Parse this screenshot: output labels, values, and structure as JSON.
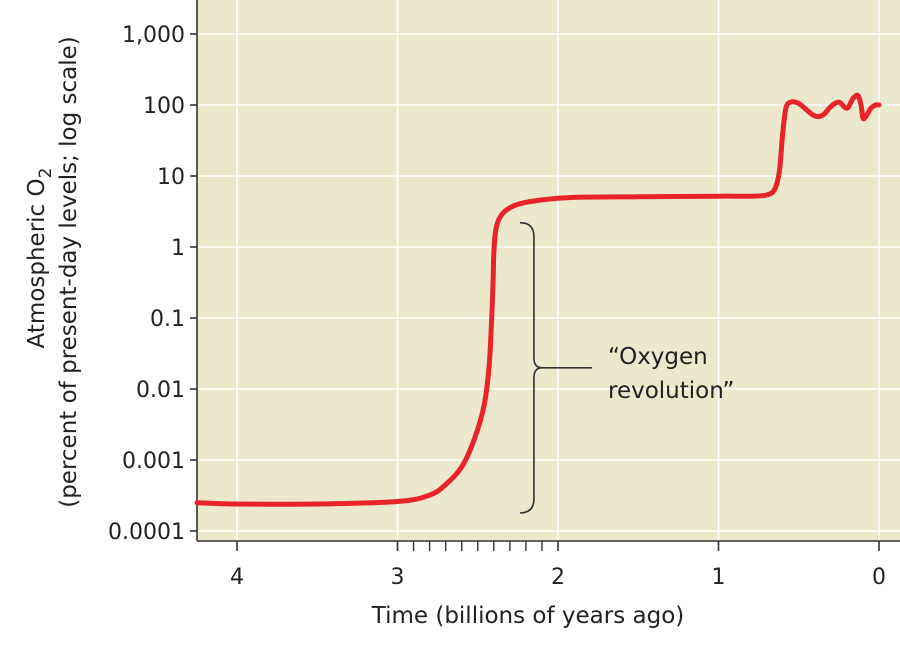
{
  "chart_data": {
    "type": "line",
    "title": "",
    "xlabel": "Time (billions of years ago)",
    "ylabel_line1": "Atmospheric O",
    "ylabel_subscript": "2",
    "ylabel_line2": "(percent of present-day levels; log scale)",
    "yscale": "log",
    "ylim": [
      0.0001,
      2000
    ],
    "xlim": [
      4.25,
      -0.05
    ],
    "x_ticks": [
      4,
      3,
      2,
      1,
      0
    ],
    "x_tick_labels": [
      "4",
      "3",
      "2",
      "1",
      "0"
    ],
    "x_minor_ticks": [
      2.9,
      2.8,
      2.7,
      2.6,
      2.5,
      2.4,
      2.3,
      2.2,
      2.1
    ],
    "y_ticks": [
      0.0001,
      0.001,
      0.01,
      0.1,
      1,
      10,
      100,
      1000
    ],
    "y_tick_labels": [
      "0.0001",
      "0.001",
      "0.01",
      "0.1",
      "1",
      "10",
      "100",
      "1,000"
    ],
    "grid": true,
    "colors": {
      "background": "#ece8cc",
      "grid": "#ffffff",
      "line": "#e8232a",
      "axis": "#333333"
    },
    "series": [
      {
        "name": "Atmospheric O2",
        "x": [
          4.25,
          4.0,
          3.5,
          3.0,
          2.8,
          2.7,
          2.6,
          2.52,
          2.46,
          2.43,
          2.415,
          2.405,
          2.4,
          2.39,
          2.37,
          2.33,
          2.25,
          2.1,
          1.9,
          1.5,
          1.0,
          0.8,
          0.7,
          0.65,
          0.62,
          0.6,
          0.58,
          0.55,
          0.5,
          0.45,
          0.4,
          0.35,
          0.3,
          0.25,
          0.2,
          0.16,
          0.13,
          0.11,
          0.1,
          0.08,
          0.05,
          0.02,
          0.0
        ],
        "y": [
          0.00025,
          0.00024,
          0.00024,
          0.00026,
          0.00032,
          0.00045,
          0.0008,
          0.002,
          0.006,
          0.02,
          0.08,
          0.3,
          0.8,
          1.6,
          2.4,
          3.2,
          4.0,
          4.6,
          5.0,
          5.1,
          5.2,
          5.2,
          5.4,
          6.5,
          12,
          40,
          90,
          110,
          105,
          85,
          70,
          72,
          95,
          110,
          90,
          125,
          135,
          95,
          65,
          70,
          90,
          100,
          100
        ]
      }
    ],
    "annotation": {
      "line1": "“Oxygen",
      "line2": "revolution”",
      "bracket_y_range": [
        0.00018,
        2.2
      ],
      "bracket_x": 2.15
    }
  }
}
